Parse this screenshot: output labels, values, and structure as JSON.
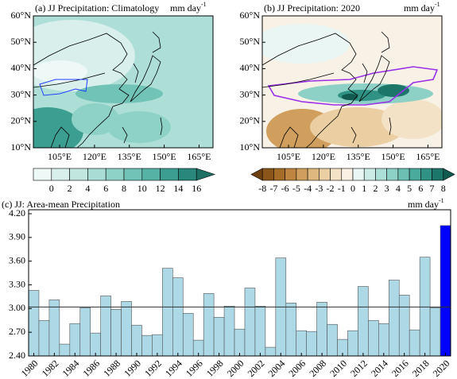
{
  "chart_data": [
    {
      "type": "map",
      "title": "(a) JJ Precipitation: Climatology",
      "units": "mm day",
      "units_sup": "-1",
      "latlim": [
        10,
        60
      ],
      "lonlim": [
        93.7,
        171
      ],
      "latticks": [
        {
          "value": 10,
          "label": "10°N"
        },
        {
          "value": 20,
          "label": "20°N"
        },
        {
          "value": 30,
          "label": "30°N"
        },
        {
          "value": 40,
          "label": "40°N"
        },
        {
          "value": 50,
          "label": "50°N"
        },
        {
          "value": 60,
          "label": "60°N"
        }
      ],
      "lonticks": [
        {
          "value": 105,
          "label": "105°E"
        },
        {
          "value": 120,
          "label": "120°E"
        },
        {
          "value": 135,
          "label": "135°E"
        },
        {
          "value": 150,
          "label": "150°E"
        },
        {
          "value": 165,
          "label": "165°E"
        }
      ],
      "colorbar": {
        "levels": [
          0,
          2,
          4,
          6,
          8,
          10,
          12,
          14,
          16
        ],
        "extend": "max",
        "colors": [
          "#eef8f6",
          "#d8efeb",
          "#c1e6e0",
          "#a8dcd4",
          "#8ed1c7",
          "#72c3b7",
          "#55b2a5",
          "#3c9e91",
          "#2a877b",
          "#1c7064"
        ]
      }
    },
    {
      "type": "map",
      "title": "(b) JJ Precipitation: 2020",
      "units": "mm day",
      "units_sup": "-1",
      "latlim": [
        10,
        60
      ],
      "lonlim": [
        93.7,
        171
      ],
      "latticks": [
        {
          "value": 10,
          "label": "10°N"
        },
        {
          "value": 20,
          "label": "20°N"
        },
        {
          "value": 30,
          "label": "30°N"
        },
        {
          "value": 40,
          "label": "40°N"
        },
        {
          "value": 50,
          "label": "50°N"
        },
        {
          "value": 60,
          "label": "60°N"
        }
      ],
      "lonticks": [
        {
          "value": 105,
          "label": "105°E"
        },
        {
          "value": 120,
          "label": "120°E"
        },
        {
          "value": 135,
          "label": "135°E"
        },
        {
          "value": 150,
          "label": "150°E"
        },
        {
          "value": 165,
          "label": "165°E"
        }
      ],
      "colorbar": {
        "levels": [
          -8,
          -7,
          -6,
          -5,
          -4,
          -3,
          -2,
          -1,
          0,
          1,
          2,
          3,
          4,
          5,
          6,
          7,
          8
        ],
        "extend": "both",
        "colors": [
          "#6e4010",
          "#8a5518",
          "#a56c28",
          "#bd8540",
          "#d09f5e",
          "#dfb87f",
          "#ebcfa3",
          "#f3e2c6",
          "#faf1e4",
          "#eaf6f4",
          "#cdebe6",
          "#aedfd7",
          "#8dd0c6",
          "#6cc0b3",
          "#4aab9d",
          "#2f9284",
          "#1d766a",
          "#125a50"
        ]
      }
    },
    {
      "type": "bar",
      "title": "(c) JJ: Area-mean Precipitation",
      "units": "mm day",
      "units_sup": "-1",
      "categories": [
        "1980",
        null,
        "1982",
        null,
        "1984",
        null,
        "1986",
        null,
        "1988",
        null,
        "1990",
        null,
        "1992",
        null,
        "1994",
        null,
        "1996",
        null,
        "1998",
        null,
        "2000",
        null,
        "2002",
        null,
        "2004",
        null,
        "2006",
        null,
        "2008",
        null,
        "2010",
        null,
        "2012",
        null,
        "2014",
        null,
        "2016",
        null,
        "2018",
        null,
        "2020"
      ],
      "values": [
        3.23,
        2.85,
        3.11,
        2.55,
        2.81,
        3.01,
        2.69,
        3.16,
        2.99,
        3.09,
        2.79,
        2.66,
        2.67,
        3.51,
        3.39,
        2.94,
        2.6,
        3.19,
        2.89,
        3.03,
        2.74,
        3.26,
        3.03,
        2.51,
        3.64,
        3.07,
        2.72,
        2.71,
        3.08,
        2.8,
        2.61,
        2.72,
        3.28,
        2.85,
        2.81,
        3.36,
        3.17,
        2.73,
        3.65,
        3.01,
        4.05
      ],
      "colors": [
        "#add8e6",
        "#add8e6",
        "#add8e6",
        "#add8e6",
        "#add8e6",
        "#add8e6",
        "#add8e6",
        "#add8e6",
        "#add8e6",
        "#add8e6",
        "#add8e6",
        "#add8e6",
        "#add8e6",
        "#add8e6",
        "#add8e6",
        "#add8e6",
        "#add8e6",
        "#add8e6",
        "#add8e6",
        "#add8e6",
        "#add8e6",
        "#add8e6",
        "#add8e6",
        "#add8e6",
        "#add8e6",
        "#add8e6",
        "#add8e6",
        "#add8e6",
        "#add8e6",
        "#add8e6",
        "#add8e6",
        "#add8e6",
        "#add8e6",
        "#add8e6",
        "#add8e6",
        "#add8e6",
        "#add8e6",
        "#add8e6",
        "#add8e6",
        "#add8e6",
        "#0000ff"
      ],
      "hline": 3.02,
      "ylim": [
        2.4,
        4.2
      ],
      "yticks": [
        {
          "value": 2.4,
          "label": "2.40"
        },
        {
          "value": 2.7,
          "label": "2.70"
        },
        {
          "value": 3.0,
          "label": "3.00"
        },
        {
          "value": 3.3,
          "label": "3.30"
        },
        {
          "value": 3.6,
          "label": "3.60"
        },
        {
          "value": 3.9,
          "label": "3.90"
        },
        {
          "value": 4.2,
          "label": "4.20"
        }
      ]
    }
  ]
}
